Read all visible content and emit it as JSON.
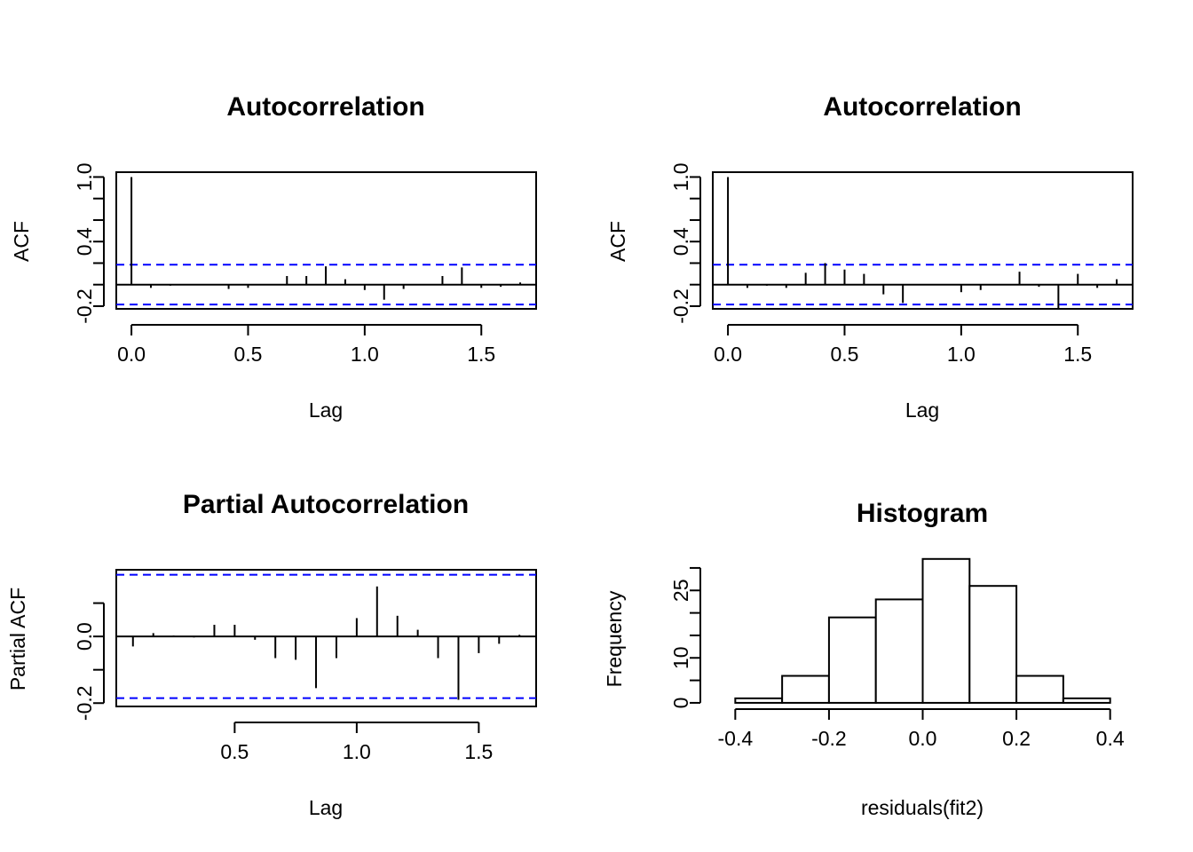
{
  "chart_data": [
    {
      "id": "acf1",
      "type": "bar",
      "title": "Autocorrelation",
      "xlabel": "Lag",
      "ylabel": "ACF",
      "xlim": [
        -0.065,
        1.735
      ],
      "ylim": [
        -0.225,
        1.045
      ],
      "x_ticks": [
        0.0,
        0.5,
        1.0,
        1.5
      ],
      "x_tick_labels": [
        "0.0",
        "0.5",
        "1.0",
        "1.5"
      ],
      "y_ticks": [
        -0.2,
        0.0,
        0.2,
        0.4,
        0.6,
        0.8,
        1.0
      ],
      "y_tick_labels": [
        "-0.2",
        "",
        "",
        "0.4",
        "",
        "",
        "1.0"
      ],
      "ci": 0.185,
      "ci_color": "#0000ff",
      "x": [
        0.0,
        0.0833,
        0.1667,
        0.25,
        0.3333,
        0.4167,
        0.5,
        0.5833,
        0.6667,
        0.75,
        0.8333,
        0.9167,
        1.0,
        1.0833,
        1.1667,
        1.25,
        1.3333,
        1.4167,
        1.5,
        1.5833,
        1.6667
      ],
      "values": [
        1.0,
        -0.03,
        -0.01,
        0.005,
        0.005,
        -0.04,
        -0.03,
        0.005,
        0.08,
        0.08,
        0.17,
        0.05,
        -0.05,
        -0.14,
        -0.04,
        0.005,
        0.08,
        0.16,
        -0.03,
        -0.02,
        0.02
      ]
    },
    {
      "id": "acf2",
      "type": "bar",
      "title": "Autocorrelation",
      "xlabel": "Lag",
      "ylabel": "ACF",
      "xlim": [
        -0.065,
        1.735
      ],
      "ylim": [
        -0.225,
        1.045
      ],
      "x_ticks": [
        0.0,
        0.5,
        1.0,
        1.5
      ],
      "x_tick_labels": [
        "0.0",
        "0.5",
        "1.0",
        "1.5"
      ],
      "y_ticks": [
        -0.2,
        0.0,
        0.2,
        0.4,
        0.6,
        0.8,
        1.0
      ],
      "y_tick_labels": [
        "-0.2",
        "",
        "",
        "0.4",
        "",
        "",
        "1.0"
      ],
      "ci": 0.185,
      "ci_color": "#0000ff",
      "x": [
        0.0,
        0.0833,
        0.1667,
        0.25,
        0.3333,
        0.4167,
        0.5,
        0.5833,
        0.6667,
        0.75,
        0.8333,
        0.9167,
        1.0,
        1.0833,
        1.1667,
        1.25,
        1.3333,
        1.4167,
        1.5,
        1.5833,
        1.6667
      ],
      "values": [
        1.0,
        -0.03,
        -0.01,
        -0.03,
        0.11,
        0.2,
        0.14,
        0.1,
        -0.09,
        -0.17,
        0.005,
        0.005,
        -0.07,
        -0.05,
        0.005,
        0.12,
        -0.02,
        -0.23,
        0.1,
        -0.03,
        0.05
      ]
    },
    {
      "id": "pacf",
      "type": "bar",
      "title": "Partial Autocorrelation",
      "xlabel": "Lag",
      "ylabel": "Partial ACF",
      "xlim": [
        0.015,
        1.735
      ],
      "ylim": [
        -0.21,
        0.2
      ],
      "x_ticks": [
        0.5,
        1.0,
        1.5
      ],
      "x_tick_labels": [
        "0.5",
        "1.0",
        "1.5"
      ],
      "y_ticks": [
        -0.2,
        -0.1,
        0.0,
        0.1
      ],
      "y_tick_labels": [
        "-0.2",
        "",
        "0.0",
        ""
      ],
      "ci": 0.185,
      "ci_color": "#0000ff",
      "x": [
        0.0833,
        0.1667,
        0.25,
        0.3333,
        0.4167,
        0.5,
        0.5833,
        0.6667,
        0.75,
        0.8333,
        0.9167,
        1.0,
        1.0833,
        1.1667,
        1.25,
        1.3333,
        1.4167,
        1.5,
        1.5833,
        1.6667
      ],
      "values": [
        -0.03,
        0.01,
        0.003,
        -0.003,
        0.035,
        0.035,
        -0.01,
        -0.065,
        -0.07,
        -0.155,
        -0.065,
        0.055,
        0.15,
        0.062,
        0.02,
        -0.065,
        -0.19,
        -0.05,
        -0.022,
        0.005
      ]
    },
    {
      "id": "hist",
      "type": "bar",
      "title": "Histogram",
      "xlabel": "residuals(fit2)",
      "ylabel": "Frequency",
      "xlim": [
        -0.448,
        0.448
      ],
      "ylim": [
        -1.0,
        29.0
      ],
      "x_ticks": [
        -0.4,
        -0.2,
        0.0,
        0.2,
        0.4
      ],
      "x_tick_labels": [
        "-0.4",
        "-0.2",
        "0.0",
        "0.2",
        "0.4"
      ],
      "y_ticks": [
        0,
        5,
        10,
        15,
        20,
        25,
        30
      ],
      "y_tick_labels": [
        "0",
        "",
        "10",
        "",
        "",
        "25",
        ""
      ],
      "bins": [
        -0.4,
        -0.3,
        -0.2,
        -0.1,
        0.0,
        0.1,
        0.2,
        0.3,
        0.4
      ],
      "counts": [
        1,
        6,
        19,
        23,
        32,
        26,
        6,
        1
      ]
    }
  ]
}
